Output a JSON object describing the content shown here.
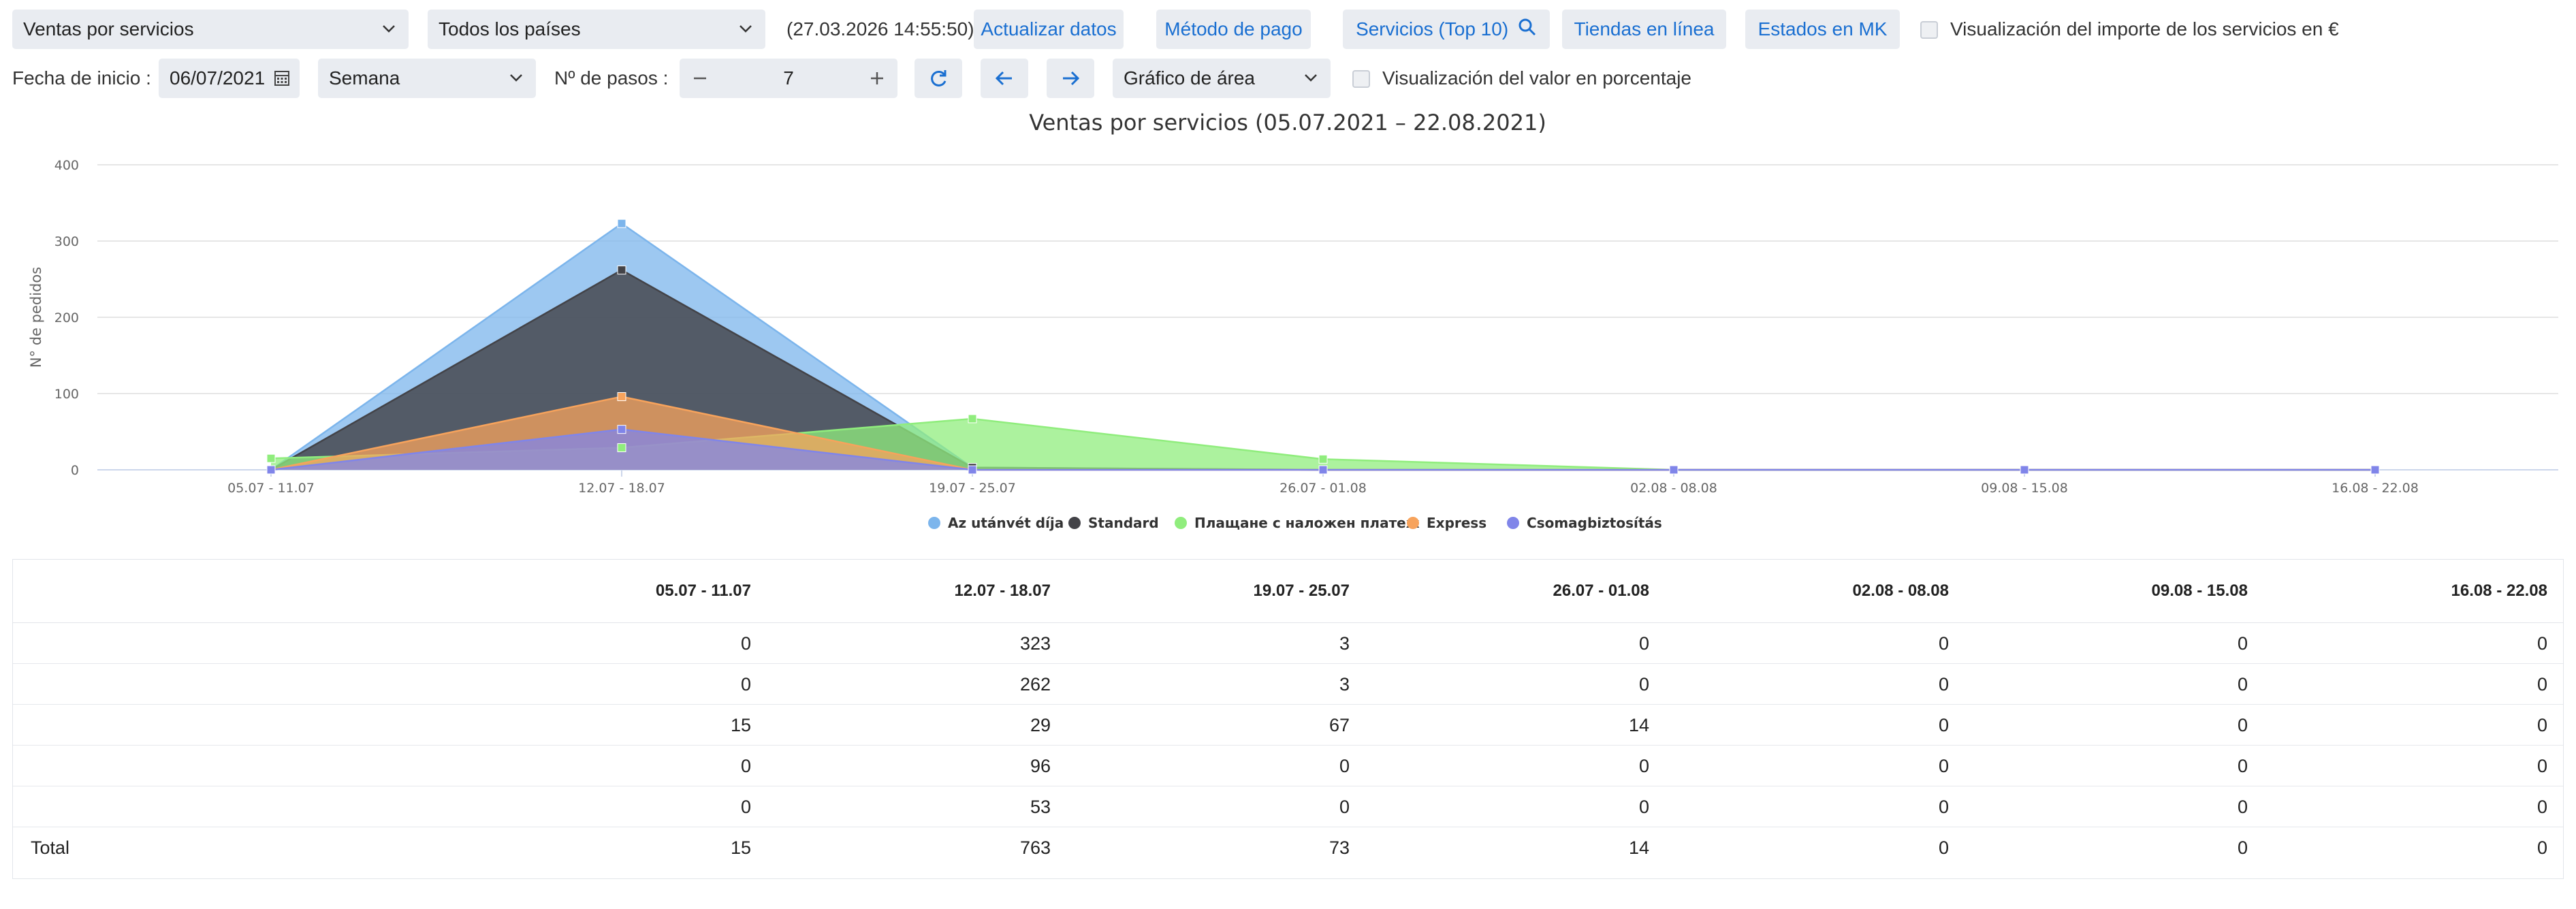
{
  "toolbar": {
    "report_select": "Ventas por servicios",
    "country_select": "Todos los países",
    "timestamp": "(27.03.2026 14:55:50)",
    "update_label": "Actualizar datos",
    "payment_label": "Método de pago",
    "services_label": "Servicios (Top 10)",
    "online_label": "Tiendas en línea",
    "states_label": "Estados en MK",
    "amount_toggle_label": "Visualización del importe de los servicios en €"
  },
  "filters": {
    "start_date_label": "Fecha de inicio :",
    "start_date_value": "06/07/2021",
    "period_select": "Semana",
    "steps_label": "Nº de pasos :",
    "steps_value": "7",
    "chart_type_select": "Gráfico de área",
    "percent_toggle_label": "Visualización del valor en porcentaje"
  },
  "icons": {
    "chevron": "chevron-down-icon",
    "calendar": "calendar-icon",
    "search": "search-icon",
    "refresh": "refresh-icon",
    "arrow_left": "arrow-left-icon",
    "arrow_right": "arrow-right-icon",
    "minus": "minus-icon",
    "plus": "plus-icon"
  },
  "chart_data": {
    "type": "area",
    "title": "Ventas por servicios (05.07.2021 – 22.08.2021)",
    "ylabel": "N° de pedidos",
    "xlabel": "",
    "ylim": [
      0,
      400
    ],
    "yticks": [
      0,
      100,
      200,
      300,
      400
    ],
    "grid": true,
    "legend_position": "bottom",
    "categories": [
      "05.07 - 11.07",
      "12.07 - 18.07",
      "19.07 - 25.07",
      "26.07 - 01.08",
      "02.08 - 08.08",
      "09.08 - 15.08",
      "16.08 - 22.08"
    ],
    "series": [
      {
        "name": "Az utánvét díja",
        "color": "#7cb5ec",
        "values": [
          0,
          323,
          3,
          0,
          0,
          0,
          0
        ]
      },
      {
        "name": "Standard",
        "color": "#434348",
        "values": [
          0,
          262,
          3,
          0,
          0,
          0,
          0
        ]
      },
      {
        "name": "Плащане с наложен платеж",
        "color": "#90ed7d",
        "values": [
          15,
          29,
          67,
          14,
          0,
          0,
          0
        ]
      },
      {
        "name": "Express",
        "color": "#f7a35c",
        "values": [
          0,
          96,
          0,
          0,
          0,
          0,
          0
        ]
      },
      {
        "name": "Csomagbiztosítás",
        "color": "#8085e9",
        "values": [
          0,
          53,
          0,
          0,
          0,
          0,
          0
        ]
      }
    ]
  },
  "table": {
    "headers": [
      "05.07 - 11.07",
      "12.07 - 18.07",
      "19.07 - 25.07",
      "26.07 - 01.08",
      "02.08 - 08.08",
      "09.08 - 15.08",
      "16.08 - 22.08"
    ],
    "rows": [
      {
        "label": "",
        "values": [
          "0",
          "323",
          "3",
          "0",
          "0",
          "0",
          "0"
        ]
      },
      {
        "label": "",
        "values": [
          "0",
          "262",
          "3",
          "0",
          "0",
          "0",
          "0"
        ]
      },
      {
        "label": "",
        "values": [
          "15",
          "29",
          "67",
          "14",
          "0",
          "0",
          "0"
        ]
      },
      {
        "label": "",
        "values": [
          "0",
          "96",
          "0",
          "0",
          "0",
          "0",
          "0"
        ]
      },
      {
        "label": "",
        "values": [
          "0",
          "53",
          "0",
          "0",
          "0",
          "0",
          "0"
        ]
      }
    ],
    "total_label": "Total",
    "totals": [
      "15",
      "763",
      "73",
      "14",
      "0",
      "0",
      "0"
    ]
  }
}
